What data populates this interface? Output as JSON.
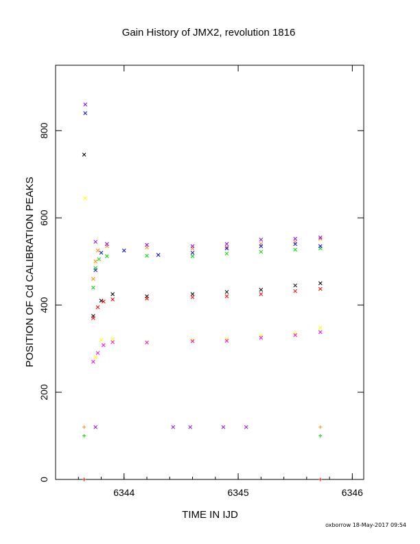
{
  "chart_data": {
    "type": "scatter",
    "title": "Gain History of JMX2, revolution 1816",
    "xlabel": "TIME IN IJD",
    "ylabel": "POSITION OF Cd CALIBRATION PEAKS",
    "xlim": [
      6343.4,
      6346.1
    ],
    "ylim": [
      0,
      950
    ],
    "xticks": [
      6344,
      6345,
      6346
    ],
    "yticks": [
      0,
      200,
      400,
      600,
      800
    ],
    "grid": false,
    "series": [
      {
        "color": "#ff8c00",
        "marker": "x",
        "points": [
          [
            6343.73,
            460
          ],
          [
            6343.75,
            500
          ],
          [
            6343.77,
            525
          ],
          [
            6343.85,
            535
          ],
          [
            6344.2,
            532
          ],
          [
            6344.6,
            530
          ],
          [
            6344.9,
            533
          ],
          [
            6345.2,
            540
          ],
          [
            6345.5,
            545
          ],
          [
            6345.72,
            552
          ]
        ]
      },
      {
        "color": "#00dd00",
        "marker": "x",
        "points": [
          [
            6343.73,
            440
          ],
          [
            6343.75,
            485
          ],
          [
            6343.78,
            505
          ],
          [
            6343.85,
            512
          ],
          [
            6344.2,
            513
          ],
          [
            6344.6,
            512
          ],
          [
            6344.9,
            518
          ],
          [
            6345.2,
            522
          ],
          [
            6345.5,
            527
          ],
          [
            6345.72,
            530
          ]
        ]
      },
      {
        "color": "#0000ff",
        "marker": "x",
        "points": [
          [
            6343.66,
            840
          ],
          [
            6343.75,
            480
          ],
          [
            6343.8,
            520
          ],
          [
            6344.0,
            525
          ],
          [
            6344.3,
            515
          ],
          [
            6344.6,
            520
          ],
          [
            6344.9,
            530
          ],
          [
            6345.2,
            535
          ],
          [
            6345.5,
            540
          ],
          [
            6345.72,
            535
          ]
        ]
      },
      {
        "color": "#9900ff",
        "marker": "x",
        "points": [
          [
            6343.66,
            860
          ],
          [
            6343.75,
            545
          ],
          [
            6343.85,
            540
          ],
          [
            6344.2,
            538
          ],
          [
            6344.6,
            535
          ],
          [
            6344.9,
            540
          ],
          [
            6345.2,
            550
          ],
          [
            6345.5,
            552
          ],
          [
            6345.72,
            555
          ]
        ]
      },
      {
        "color": "#000000",
        "marker": "x",
        "points": [
          [
            6343.65,
            745
          ],
          [
            6343.73,
            375
          ],
          [
            6343.8,
            410
          ],
          [
            6343.9,
            425
          ],
          [
            6344.2,
            420
          ],
          [
            6344.6,
            425
          ],
          [
            6344.9,
            430
          ],
          [
            6345.2,
            435
          ],
          [
            6345.5,
            445
          ],
          [
            6345.72,
            450
          ]
        ]
      },
      {
        "color": "#ff0000",
        "marker": "x",
        "points": [
          [
            6343.73,
            370
          ],
          [
            6343.77,
            395
          ],
          [
            6343.82,
            408
          ],
          [
            6343.9,
            413
          ],
          [
            6344.2,
            415
          ],
          [
            6344.6,
            418
          ],
          [
            6344.9,
            420
          ],
          [
            6345.2,
            425
          ],
          [
            6345.5,
            432
          ],
          [
            6345.72,
            437
          ]
        ]
      },
      {
        "color": "#ffff00",
        "marker": "x",
        "points": [
          [
            6343.66,
            645
          ],
          [
            6343.75,
            280
          ],
          [
            6343.8,
            320
          ],
          [
            6343.9,
            322
          ],
          [
            6344.2,
            315
          ],
          [
            6344.6,
            320
          ],
          [
            6344.9,
            322
          ],
          [
            6345.2,
            330
          ],
          [
            6345.5,
            335
          ],
          [
            6345.72,
            348
          ]
        ]
      },
      {
        "color": "#ff00ff",
        "marker": "x",
        "points": [
          [
            6343.73,
            270
          ],
          [
            6343.77,
            290
          ],
          [
            6343.82,
            308
          ],
          [
            6343.9,
            315
          ],
          [
            6344.2,
            314
          ],
          [
            6344.6,
            317
          ],
          [
            6344.9,
            318
          ],
          [
            6345.2,
            325
          ],
          [
            6345.5,
            331
          ],
          [
            6345.72,
            338
          ]
        ]
      },
      {
        "color": "#ff8c00",
        "marker": "+",
        "points": [
          [
            6343.65,
            120
          ],
          [
            6345.72,
            120
          ]
        ]
      },
      {
        "color": "#00dd00",
        "marker": "+",
        "points": [
          [
            6343.65,
            100
          ],
          [
            6345.72,
            100
          ]
        ]
      },
      {
        "color": "#9900ff",
        "marker": "x",
        "points": [
          [
            6343.75,
            120
          ],
          [
            6344.43,
            120
          ],
          [
            6344.58,
            120
          ],
          [
            6344.87,
            120
          ],
          [
            6345.07,
            120
          ]
        ]
      },
      {
        "color": "#ff0000",
        "marker": "+",
        "points": [
          [
            6343.65,
            0
          ],
          [
            6345.72,
            0
          ]
        ]
      }
    ]
  },
  "footer": {
    "credit": "oxborrow 18-May-2017 09:54"
  }
}
